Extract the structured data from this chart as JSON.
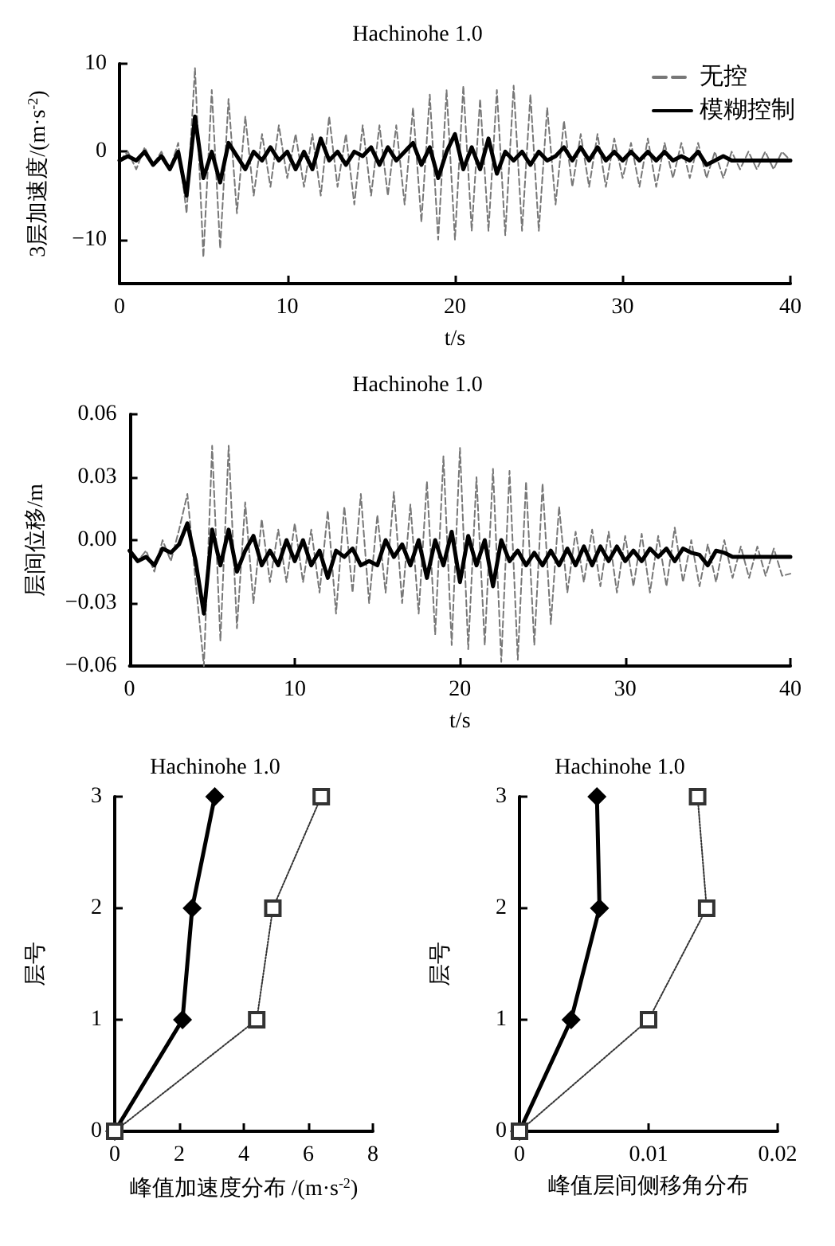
{
  "chart_data": [
    {
      "type": "line",
      "title": "Hachinohe 1.0",
      "xlabel": "t/s",
      "ylabel": "3层加速度/(m·s$^{-2}$)",
      "xlim": [
        0,
        40
      ],
      "xticks": [
        0,
        10,
        20,
        30,
        40
      ],
      "ylim": [
        -15,
        10
      ],
      "yticks": [
        {
          "value": -10,
          "label": "−10"
        },
        0,
        10
      ],
      "legend": "top right",
      "marker": "none",
      "x": [
        0,
        0.5,
        1,
        1.5,
        2,
        2.5,
        3,
        3.5,
        4,
        4.5,
        5,
        5.5,
        6,
        6.5,
        7,
        7.5,
        8,
        8.5,
        9,
        9.5,
        10,
        10.5,
        11,
        11.5,
        12,
        12.5,
        13,
        13.5,
        14,
        14.5,
        15,
        15.5,
        16,
        16.5,
        17,
        17.5,
        18,
        18.5,
        19,
        19.5,
        20,
        20.5,
        21,
        21.5,
        22,
        22.5,
        23,
        23.5,
        24,
        24.5,
        25,
        25.5,
        26,
        26.5,
        27,
        27.5,
        28,
        28.5,
        29,
        29.5,
        30,
        30.5,
        31,
        31.5,
        32,
        32.5,
        33,
        33.5,
        34,
        34.5,
        35,
        35.5,
        36,
        36.5,
        37,
        37.5,
        38,
        38.5,
        39,
        39.5,
        40
      ],
      "series": [
        {
          "name": "无控",
          "color": "#777777",
          "line_style": "dashed",
          "values": [
            -1,
            0,
            -2,
            0.5,
            -1.5,
            0,
            -2,
            1,
            -7,
            9.5,
            -12,
            7,
            -11,
            6,
            -7,
            4,
            -5,
            2,
            -4,
            3,
            -3,
            2,
            -4,
            2,
            -5,
            4,
            -4,
            2,
            -6,
            3,
            -5,
            3,
            -5,
            3,
            -6,
            5,
            -8,
            6.5,
            -10,
            7,
            -10,
            7.5,
            -9,
            6,
            -9,
            7,
            -9.5,
            7.5,
            -9,
            6.5,
            -9,
            5,
            -6,
            3.5,
            -4,
            2,
            -4,
            2,
            -4,
            1.5,
            -3,
            1,
            -4,
            1.5,
            -4,
            1,
            -3,
            1,
            -3,
            1,
            -3,
            0,
            -3,
            0,
            -2,
            0,
            -2,
            0,
            -2,
            0,
            -1
          ]
        },
        {
          "name": "模糊控制",
          "color": "#000000",
          "line_style": "solid",
          "values": [
            -1,
            -0.5,
            -1,
            0,
            -1.5,
            -0.5,
            -2,
            0,
            -5,
            4,
            -3,
            0,
            -3.5,
            1,
            -0.5,
            -2,
            0,
            -1,
            0.5,
            -1,
            0,
            -2,
            0,
            -2,
            1.5,
            -1,
            0,
            -1.5,
            0,
            -0.5,
            0.5,
            -1.5,
            0.5,
            -1,
            0,
            1,
            -1.5,
            0.5,
            -3,
            0,
            2,
            -2,
            0.5,
            -2,
            1.5,
            -2.5,
            0,
            -1,
            0,
            -1.5,
            0,
            -1,
            -0.5,
            0.5,
            -1,
            0.5,
            -1,
            0.5,
            -1,
            0,
            -1,
            0,
            -1,
            0,
            -1,
            0,
            -1,
            -0.5,
            -1,
            0,
            -1.5,
            -1,
            -0.5,
            -1,
            -1,
            -1,
            -1,
            -1,
            -1,
            -1,
            -1
          ]
        }
      ]
    },
    {
      "type": "line",
      "title": "Hachinohe 1.0",
      "xlabel": "t/s",
      "ylabel": "层间位移/m",
      "xlim": [
        0,
        40
      ],
      "xticks": [
        0,
        10,
        20,
        30,
        40
      ],
      "ylim": [
        -0.06,
        0.06
      ],
      "yticks": [
        {
          "value": -0.06,
          "label": "−0.06"
        },
        {
          "value": -0.03,
          "label": "−0.03"
        },
        {
          "value": 0,
          "label": "0.00"
        },
        {
          "value": 0.03,
          "label": "0.03"
        },
        {
          "value": 0.06,
          "label": "0.06"
        }
      ],
      "marker": "none",
      "x": [
        0,
        0.5,
        1,
        1.5,
        2,
        2.5,
        3,
        3.5,
        4,
        4.5,
        5,
        5.5,
        6,
        6.5,
        7,
        7.5,
        8,
        8.5,
        9,
        9.5,
        10,
        10.5,
        11,
        11.5,
        12,
        12.5,
        13,
        13.5,
        14,
        14.5,
        15,
        15.5,
        16,
        16.5,
        17,
        17.5,
        18,
        18.5,
        19,
        19.5,
        20,
        20.5,
        21,
        21.5,
        22,
        22.5,
        23,
        23.5,
        24,
        24.5,
        25,
        25.5,
        26,
        26.5,
        27,
        27.5,
        28,
        28.5,
        29,
        29.5,
        30,
        30.5,
        31,
        31.5,
        32,
        32.5,
        33,
        33.5,
        34,
        34.5,
        35,
        35.5,
        36,
        36.5,
        37,
        37.5,
        38,
        38.5,
        39,
        39.5,
        40
      ],
      "series": [
        {
          "color": "#777777",
          "line_style": "dashed",
          "values": [
            -0.005,
            -0.01,
            -0.005,
            -0.015,
            0,
            -0.01,
            0.005,
            0.022,
            -0.02,
            -0.06,
            0.045,
            -0.048,
            0.045,
            -0.042,
            0.018,
            -0.03,
            0.01,
            -0.02,
            0.005,
            -0.02,
            0.008,
            -0.02,
            0.005,
            -0.025,
            0.014,
            -0.035,
            0.016,
            -0.025,
            0.022,
            -0.03,
            0.012,
            -0.025,
            0.023,
            -0.03,
            0.017,
            -0.035,
            0.028,
            -0.045,
            0.04,
            -0.05,
            0.044,
            -0.052,
            0.03,
            -0.05,
            0.034,
            -0.058,
            0.033,
            -0.057,
            0.028,
            -0.05,
            0.027,
            -0.04,
            0.016,
            -0.025,
            0.004,
            -0.02,
            0.005,
            -0.022,
            0.004,
            -0.025,
            0.002,
            -0.022,
            0.003,
            -0.025,
            0.002,
            -0.022,
            0.006,
            -0.02,
            0,
            -0.022,
            -0.002,
            -0.02,
            0,
            -0.018,
            -0.003,
            -0.018,
            -0.003,
            -0.017,
            -0.004,
            -0.017,
            -0.016
          ]
        },
        {
          "color": "#000000",
          "line_style": "solid",
          "values": [
            -0.005,
            -0.01,
            -0.008,
            -0.012,
            -0.004,
            -0.006,
            -0.002,
            0.008,
            -0.01,
            -0.035,
            0.005,
            -0.012,
            0.005,
            -0.015,
            -0.005,
            0.002,
            -0.012,
            -0.005,
            -0.012,
            0,
            -0.01,
            0,
            -0.012,
            -0.005,
            -0.018,
            -0.005,
            -0.008,
            -0.004,
            -0.012,
            -0.01,
            -0.012,
            0,
            -0.008,
            -0.002,
            -0.012,
            0,
            -0.018,
            0,
            -0.012,
            0.004,
            -0.02,
            0.002,
            -0.012,
            0,
            -0.022,
            0,
            -0.01,
            -0.005,
            -0.012,
            -0.006,
            -0.012,
            -0.005,
            -0.012,
            -0.004,
            -0.012,
            -0.003,
            -0.012,
            -0.003,
            -0.01,
            -0.003,
            -0.01,
            -0.005,
            -0.01,
            -0.004,
            -0.008,
            -0.004,
            -0.01,
            -0.004,
            -0.006,
            -0.007,
            -0.012,
            -0.005,
            -0.006,
            -0.008,
            -0.008,
            -0.008,
            -0.008,
            -0.008,
            -0.008,
            -0.008,
            -0.008
          ]
        }
      ]
    },
    {
      "type": "line",
      "title": "Hachinohe 1.0",
      "xlabel": "峰值加速度分布 /(m·s$^{-2}$)",
      "ylabel": "层号",
      "xlim": [
        0,
        8
      ],
      "xticks": [
        0,
        2,
        4,
        6,
        8
      ],
      "ylim": [
        0,
        3
      ],
      "yticks": [
        0,
        1,
        2,
        3
      ],
      "series": [
        {
          "color": "#000000",
          "line_style": "solid",
          "marker": "diamond",
          "x": [
            0,
            2.1,
            2.4,
            3.1
          ],
          "values": [
            0,
            1,
            2,
            3
          ]
        },
        {
          "color": "#333333",
          "line_style": "dotted",
          "marker": "square",
          "x": [
            0,
            4.4,
            4.9,
            6.4
          ],
          "values": [
            0,
            1,
            2,
            3
          ]
        }
      ]
    },
    {
      "type": "line",
      "title": "Hachinohe 1.0",
      "xlabel": "峰值层间侧移角分布",
      "ylabel": "层号",
      "xlim": [
        0,
        0.02
      ],
      "xticks": [
        0,
        0.01,
        0.02
      ],
      "ylim": [
        0,
        3
      ],
      "yticks": [
        0,
        1,
        2,
        3
      ],
      "series": [
        {
          "color": "#000000",
          "line_style": "solid",
          "marker": "diamond",
          "x": [
            0,
            0.004,
            0.0062,
            0.006
          ],
          "values": [
            0,
            1,
            2,
            3
          ]
        },
        {
          "color": "#333333",
          "line_style": "dotted",
          "marker": "square",
          "x": [
            0,
            0.01,
            0.0145,
            0.0138
          ],
          "values": [
            0,
            1,
            2,
            3
          ]
        }
      ]
    }
  ]
}
